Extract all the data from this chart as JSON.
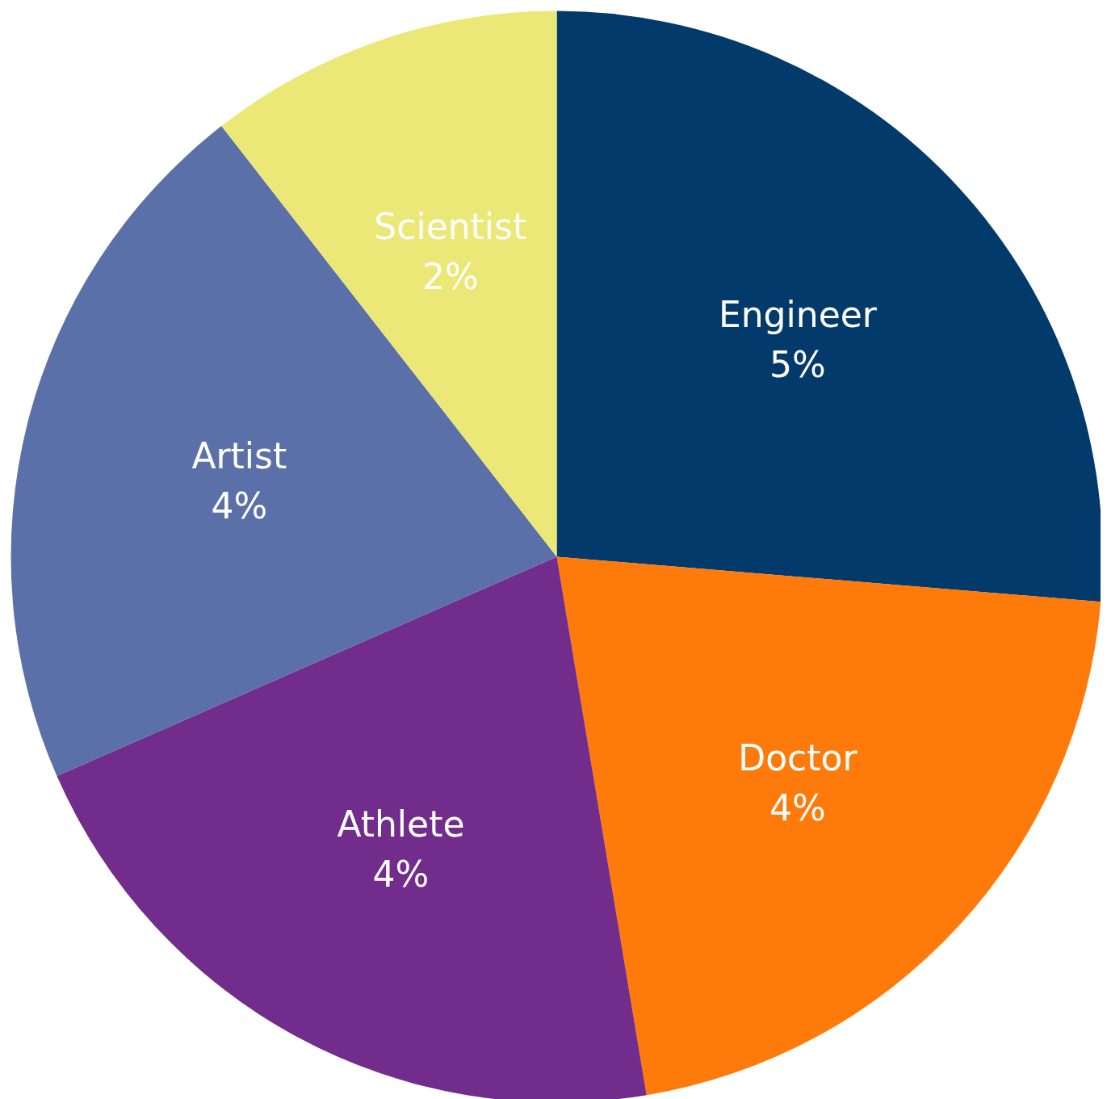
{
  "chart_data": {
    "type": "pie",
    "categories": [
      "Engineer",
      "Doctor",
      "Athlete",
      "Artist",
      "Scientist"
    ],
    "values": [
      5,
      4,
      4,
      4,
      2
    ],
    "value_labels": [
      "5%",
      "4%",
      "4%",
      "4%",
      "2%"
    ],
    "colors": [
      "#023a6b",
      "#fe7a0a",
      "#712c8c",
      "#5b70a8",
      "#ebe877"
    ]
  }
}
